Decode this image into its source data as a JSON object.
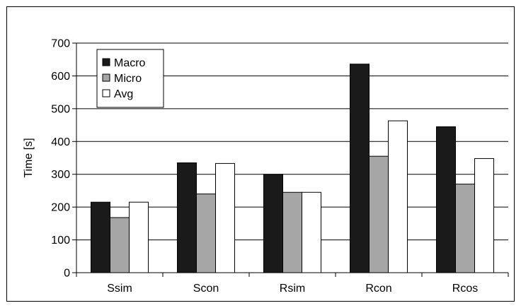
{
  "chart_data": {
    "type": "bar",
    "title": "",
    "xlabel": "",
    "ylabel": "Time [s]",
    "ylim": [
      0,
      700
    ],
    "yticks": [
      0,
      100,
      200,
      300,
      400,
      500,
      600,
      700
    ],
    "grid": true,
    "legend_position": "top-left",
    "categories": [
      "Ssim",
      "Scon",
      "Rsim",
      "Rcon",
      "Rcos"
    ],
    "series": [
      {
        "name": "Macro",
        "color": "#1a1a1a",
        "values": [
          215,
          335,
          300,
          636,
          445
        ]
      },
      {
        "name": "Micro",
        "color": "#a6a6a6",
        "values": [
          168,
          240,
          245,
          355,
          270
        ]
      },
      {
        "name": "Avg",
        "color": "#ffffff",
        "values": [
          215,
          333,
          245,
          463,
          348
        ]
      }
    ]
  }
}
